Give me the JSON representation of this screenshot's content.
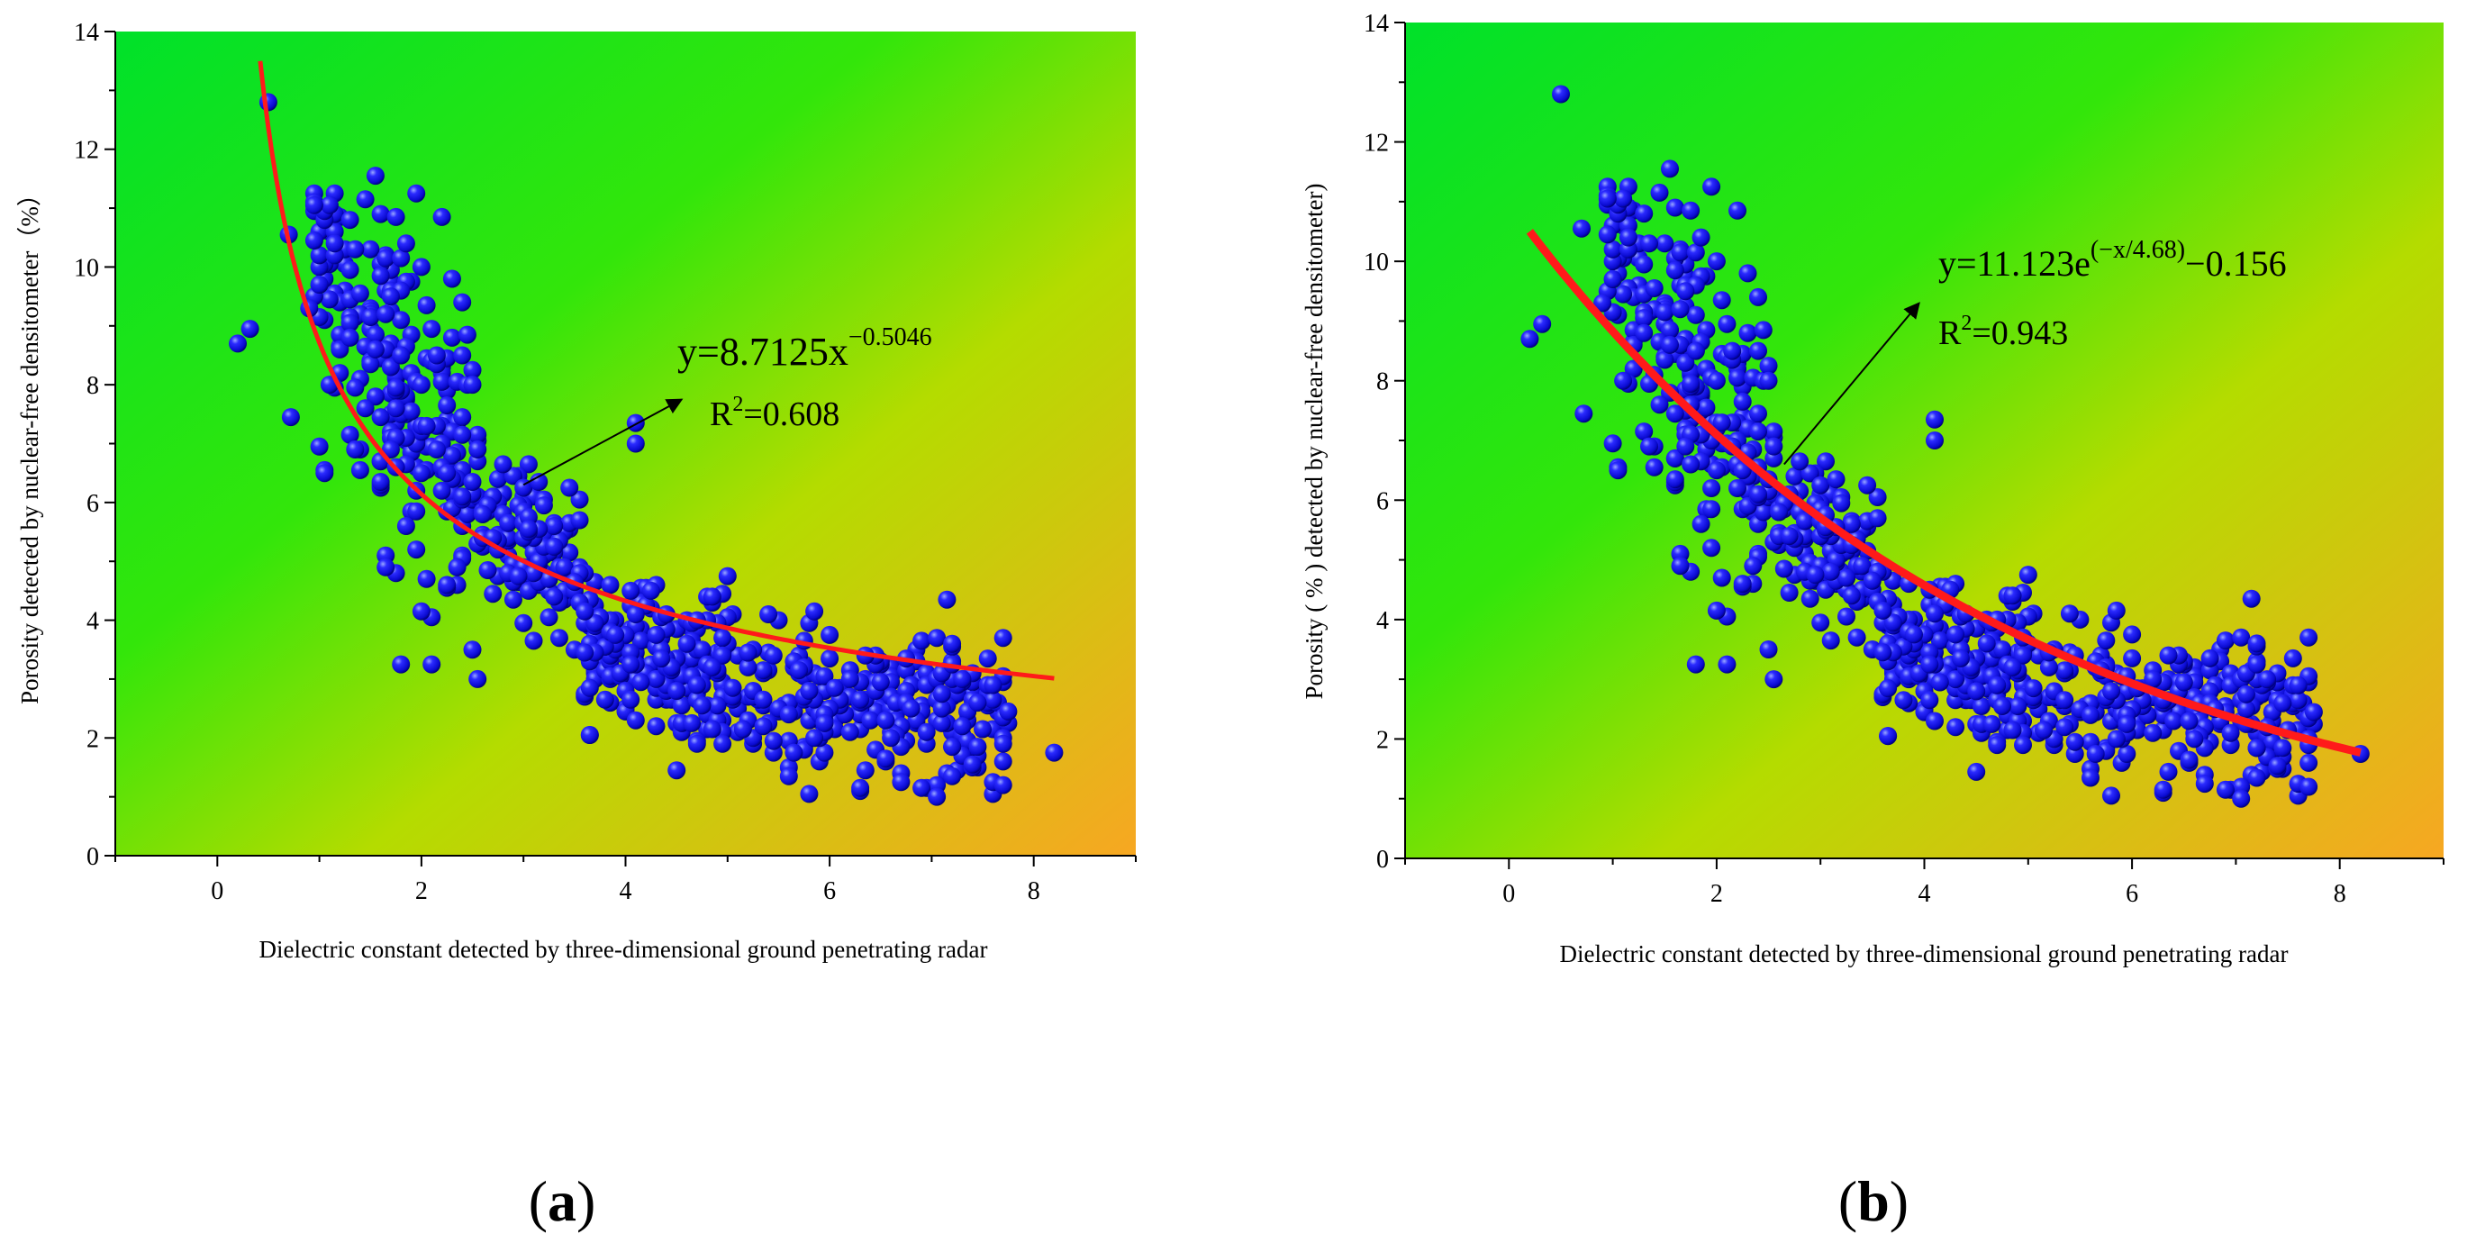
{
  "colors": {
    "bg_green": "#1ee61e",
    "bg_mid": "#8fe000",
    "bg_orange": "#f5a623",
    "point_fill": "#1a1aff",
    "point_dark": "#000090",
    "fit_line": "#ff2020",
    "axis": "#000000"
  },
  "chart_data": [
    {
      "id": "a",
      "type": "scatter",
      "panel_label": {
        "open": "(",
        "letter": "a",
        "close": ")"
      },
      "xlabel": "Dielectric constant detected by three-dimensional ground penetrating radar",
      "ylabel": "Porosity detected by nuclear-free densitometer（%）",
      "xlim": [
        -1,
        9
      ],
      "ylim": [
        0,
        14
      ],
      "xticks": [
        0,
        2,
        4,
        6,
        8
      ],
      "yticks": [
        0,
        2,
        4,
        6,
        8,
        10,
        12,
        14
      ],
      "fit": {
        "model": "power",
        "a": 8.7125,
        "b": -0.5046,
        "x_range": [
          0.42,
          8.2
        ]
      },
      "equation": {
        "main": "y=8.7125x",
        "sup": "−0.5046"
      },
      "r2": {
        "r": "R",
        "sup": "2",
        "value": "=0.608"
      },
      "annotation": {
        "from": [
          3.0,
          6.3
        ],
        "to": [
          4.55,
          7.75
        ]
      }
    },
    {
      "id": "b",
      "type": "scatter",
      "panel_label": {
        "open": "(",
        "letter": "b",
        "close": ")"
      },
      "xlabel": "Dielectric constant detected by three-dimensional ground penetrating radar",
      "ylabel": "Porosity ( % ) detected by nuclear-free densitometer)",
      "xlim": [
        -1,
        9
      ],
      "ylim": [
        0,
        14
      ],
      "xticks": [
        0,
        2,
        4,
        6,
        8
      ],
      "yticks": [
        0,
        2,
        4,
        6,
        8,
        10,
        12,
        14
      ],
      "fit": {
        "model": "exp",
        "a": 11.123,
        "t": 4.68,
        "c": -0.156,
        "x_range": [
          0.2,
          8.2
        ]
      },
      "equation": {
        "main": "y=11.123e",
        "sup": "(−x/4.68)",
        "tail": "−0.156"
      },
      "r2": {
        "r": "R",
        "sup": "2",
        "value": "=0.943"
      },
      "annotation": {
        "from": [
          2.65,
          6.6
        ],
        "to": [
          3.95,
          9.3
        ]
      }
    }
  ],
  "scatter": {
    "seed": 7,
    "n_points": 760,
    "model": "power",
    "a": 8.7125,
    "b": -0.5046,
    "x_min": 0.95,
    "x_max": 7.75,
    "noise": 1.05,
    "y_min": 1.0,
    "extra_points": [
      {
        "x": 0.2,
        "y": 8.7
      },
      {
        "x": 0.32,
        "y": 8.95
      },
      {
        "x": 0.5,
        "y": 12.8
      },
      {
        "x": 0.7,
        "y": 10.55
      },
      {
        "x": 0.72,
        "y": 7.45
      },
      {
        "x": 0.9,
        "y": 9.3
      },
      {
        "x": 1.0,
        "y": 9.7
      },
      {
        "x": 1.55,
        "y": 11.55
      },
      {
        "x": 1.6,
        "y": 10.9
      },
      {
        "x": 1.75,
        "y": 10.85
      },
      {
        "x": 4.1,
        "y": 7.35
      },
      {
        "x": 4.1,
        "y": 7.0
      },
      {
        "x": 2.55,
        "y": 3.0
      },
      {
        "x": 1.8,
        "y": 3.25
      },
      {
        "x": 2.1,
        "y": 3.25
      },
      {
        "x": 8.2,
        "y": 1.75
      },
      {
        "x": 7.2,
        "y": 3.6
      },
      {
        "x": 7.05,
        "y": 1.0
      },
      {
        "x": 6.3,
        "y": 1.15
      },
      {
        "x": 5.6,
        "y": 1.35
      },
      {
        "x": 6.7,
        "y": 1.25
      },
      {
        "x": 7.6,
        "y": 2.9
      },
      {
        "x": 7.7,
        "y": 1.9
      },
      {
        "x": 4.95,
        "y": 1.9
      },
      {
        "x": 4.1,
        "y": 2.3
      }
    ]
  }
}
